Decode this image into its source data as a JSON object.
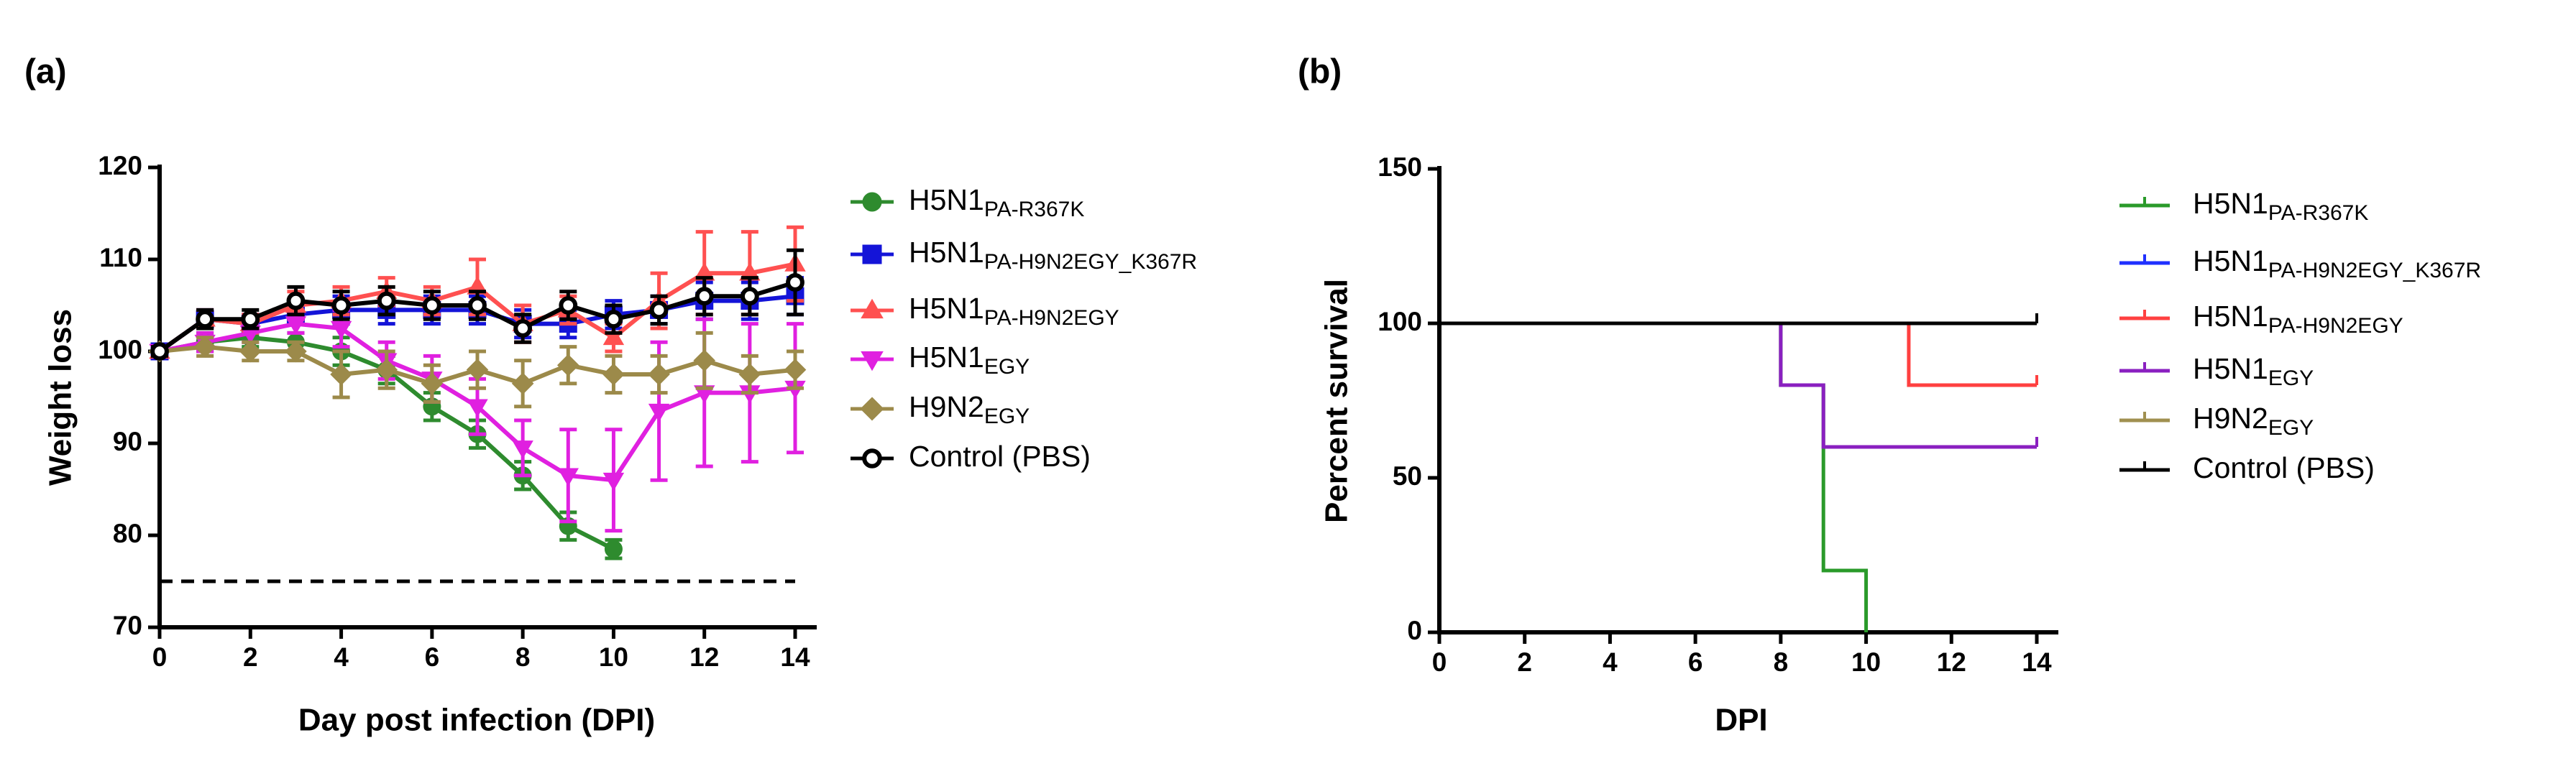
{
  "chart_data": [
    {
      "type": "line",
      "panel_label": "(a)",
      "xlabel": "Day post infection (DPI)",
      "ylabel": "Weight loss",
      "x": [
        0,
        1,
        2,
        3,
        4,
        5,
        6,
        7,
        8,
        9,
        10,
        11,
        12,
        13,
        14
      ],
      "xlim": [
        0,
        14
      ],
      "xticks": [
        0,
        2,
        4,
        6,
        8,
        10,
        12,
        14
      ],
      "ylim": [
        70,
        120
      ],
      "yticks": [
        70,
        80,
        90,
        100,
        110,
        120
      ],
      "hline": 75,
      "series": [
        {
          "name": "H5N1",
          "name_sub": "PA-R367K",
          "color": "#2e8b2e",
          "marker": "circle",
          "values": [
            100,
            101,
            101.5,
            101,
            100,
            98,
            94,
            91,
            86.5,
            81,
            78.5,
            null,
            null,
            null,
            null
          ],
          "errors": [
            0.5,
            1,
            1,
            1,
            1.5,
            1.5,
            1.5,
            1.5,
            1.5,
            1.5,
            1,
            null,
            null,
            null,
            null
          ]
        },
        {
          "name": "H5N1",
          "name_sub": "PA-H9N2EGY_K367R",
          "color": "#1414d8",
          "marker": "square",
          "values": [
            100,
            103.5,
            103,
            104,
            104.5,
            104.5,
            104.5,
            104.5,
            103,
            103,
            104,
            104.5,
            105.5,
            105.5,
            106
          ],
          "errors": [
            0.5,
            1,
            1,
            1,
            1.5,
            1.5,
            1.5,
            1.5,
            1.5,
            1.5,
            1.5,
            1.5,
            2,
            2,
            2
          ]
        },
        {
          "name": "H5N1",
          "name_sub": "PA-H9N2EGY",
          "color": "#ff5050",
          "marker": "triangle",
          "values": [
            100,
            103.5,
            103,
            105,
            105.5,
            106.5,
            105.5,
            107,
            103,
            104.5,
            101.5,
            105.5,
            108.5,
            108.5,
            109.5
          ],
          "errors": [
            0.5,
            1,
            1,
            1.5,
            1.5,
            1.5,
            1.5,
            3,
            2,
            1.5,
            1.5,
            3,
            4.5,
            4.5,
            4
          ]
        },
        {
          "name": "H5N1",
          "name_sub": "EGY",
          "color": "#e020e0",
          "marker": "triangle-down",
          "values": [
            100,
            101,
            102,
            103,
            102.5,
            99,
            97,
            94,
            89.5,
            86.5,
            86,
            93.5,
            95.5,
            95.5,
            96
          ],
          "errors": [
            0.5,
            1,
            1,
            1,
            2,
            2,
            2.5,
            3,
            3,
            5,
            5.5,
            7.5,
            8,
            7.5,
            7
          ]
        },
        {
          "name": "H9N2",
          "name_sub": "EGY",
          "color": "#9c8a4a",
          "marker": "diamond",
          "values": [
            100,
            100.5,
            100,
            100,
            97.5,
            98,
            96.5,
            98,
            96.5,
            98.5,
            97.5,
            97.5,
            99,
            97.5,
            98
          ],
          "errors": [
            0.5,
            1,
            1,
            1,
            2.5,
            2,
            2,
            2,
            2.5,
            2,
            2,
            2,
            3,
            2,
            2
          ]
        },
        {
          "name": "Control (PBS)",
          "color": "#000000",
          "marker": "open-circle",
          "values": [
            100,
            103.5,
            103.5,
            105.5,
            105,
            105.5,
            105,
            105,
            102.5,
            105,
            103.5,
            104.5,
            106,
            106,
            107.5
          ],
          "errors": [
            0.5,
            1,
            1,
            1.5,
            1.5,
            1.5,
            1.5,
            1.5,
            1.5,
            1.5,
            1.5,
            1.5,
            2,
            2,
            3.5
          ]
        }
      ]
    },
    {
      "type": "step",
      "panel_label": "(b)",
      "xlabel": "DPI",
      "ylabel": "Percent survival",
      "xlim": [
        0,
        14
      ],
      "xticks": [
        0,
        2,
        4,
        6,
        8,
        10,
        12,
        14
      ],
      "ylim": [
        0,
        150
      ],
      "yticks": [
        0,
        50,
        100,
        150
      ],
      "series": [
        {
          "name": "H5N1",
          "name_sub": "PA-R367K",
          "color": "#2a9a2a",
          "x": [
            0,
            8,
            9,
            10
          ],
          "values": [
            100,
            80,
            20,
            0
          ]
        },
        {
          "name": "H5N1",
          "name_sub": "PA-H9N2EGY_K367R",
          "color": "#2030ff",
          "x": [
            0,
            14
          ],
          "values": [
            100,
            100
          ]
        },
        {
          "name": "H5N1",
          "name_sub": "PA-H9N2EGY",
          "color": "#ff4040",
          "x": [
            0,
            11,
            14
          ],
          "values": [
            100,
            80,
            80
          ]
        },
        {
          "name": "H5N1",
          "name_sub": "EGY",
          "color": "#8a20c0",
          "x": [
            0,
            8,
            9,
            14
          ],
          "values": [
            100,
            80,
            60,
            60
          ]
        },
        {
          "name": "H9N2",
          "name_sub": "EGY",
          "color": "#a09050",
          "x": [
            0,
            14
          ],
          "values": [
            100,
            100
          ]
        },
        {
          "name": "Control (PBS)",
          "color": "#000000",
          "x": [
            0,
            14
          ],
          "values": [
            100,
            100
          ]
        }
      ]
    }
  ]
}
